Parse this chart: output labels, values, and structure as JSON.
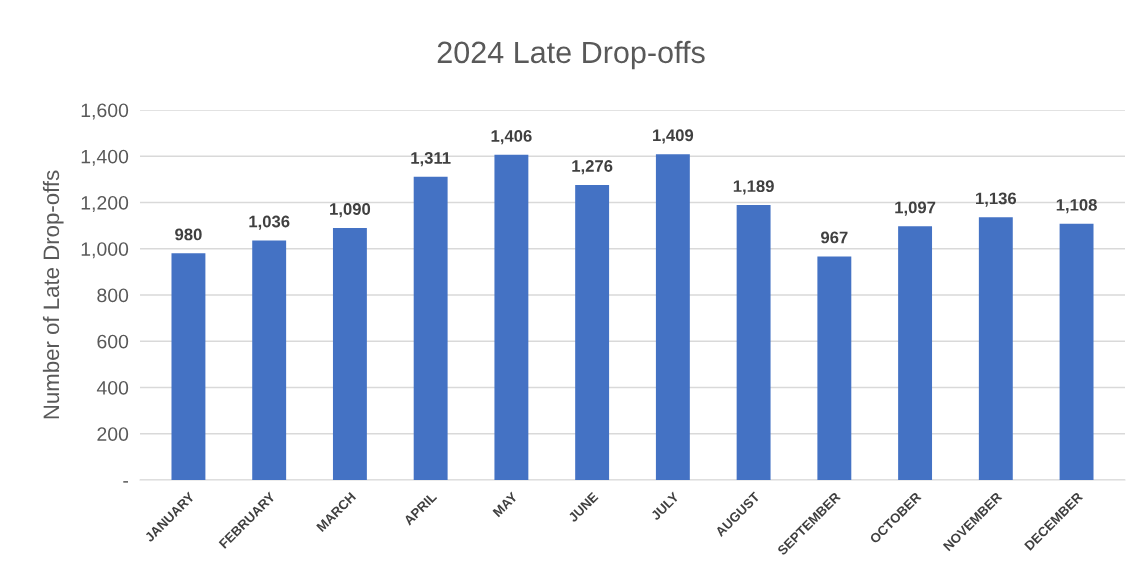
{
  "chart_data": {
    "type": "bar",
    "title": "2024 Late Drop-offs",
    "ylabel": "Number of Late Drop-offs",
    "categories": [
      "JANUARY",
      "FEBRUARY",
      "MARCH",
      "APRIL",
      "MAY",
      "JUNE",
      "JULY",
      "AUGUST",
      "SEPTEMBER",
      "OCTOBER",
      "NOVEMBER",
      "DECEMBER"
    ],
    "values": [
      980,
      1036,
      1090,
      1311,
      1406,
      1276,
      1409,
      1189,
      967,
      1097,
      1136,
      1108
    ],
    "value_labels": [
      "980",
      "1,036",
      "1,090",
      "1,311",
      "1,406",
      "1,276",
      "1,409",
      "1,189",
      "967",
      "1,097",
      "1,136",
      "1,108"
    ],
    "color": "#4472c4",
    "ylim": [
      0,
      1600
    ],
    "yticks": [
      {
        "value": 0,
        "label": "-"
      },
      200,
      400,
      600,
      800,
      {
        "value": 1000,
        "label": "1,000"
      },
      {
        "value": 1200,
        "label": "1,200"
      },
      {
        "value": 1400,
        "label": "1,400"
      },
      {
        "value": 1600,
        "label": "1,600"
      }
    ],
    "grid": "y",
    "legend": false
  }
}
